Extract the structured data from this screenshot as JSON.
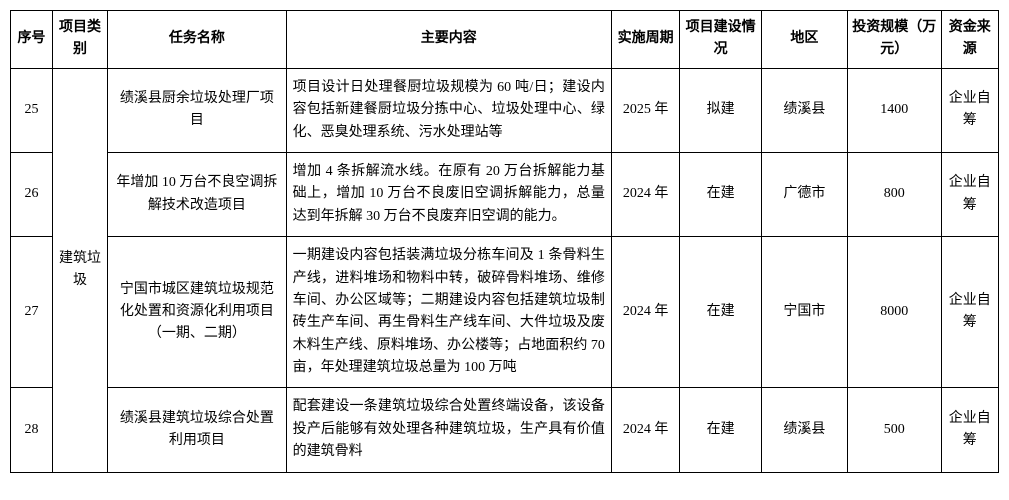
{
  "headers": {
    "seq": "序号",
    "category": "项目类别",
    "task": "任务名称",
    "content": "主要内容",
    "period": "实施周期",
    "status": "项目建设情况",
    "region": "地区",
    "invest": "投资规模（万元）",
    "fund": "资金来源"
  },
  "category_group": "建筑垃圾",
  "rows": [
    {
      "seq": "25",
      "task": "绩溪县厨余垃圾处理厂项目",
      "content": "项目设计日处理餐厨垃圾规模为 60 吨/日；建设内容包括新建餐厨垃圾分拣中心、垃圾处理中心、绿化、恶臭处理系统、污水处理站等",
      "period": "2025 年",
      "status": "拟建",
      "region": "绩溪县",
      "invest": "1400",
      "fund": "企业自筹"
    },
    {
      "seq": "26",
      "task": "年增加 10 万台不良空调拆解技术改造项目",
      "content": "增加 4 条拆解流水线。在原有 20 万台拆解能力基础上，增加 10 万台不良废旧空调拆解能力，总量达到年拆解 30 万台不良废弃旧空调的能力。",
      "period": "2024 年",
      "status": "在建",
      "region": "广德市",
      "invest": "800",
      "fund": "企业自筹"
    },
    {
      "seq": "27",
      "task": "宁国市城区建筑垃圾规范化处置和资源化利用项目（一期、二期）",
      "content": "一期建设内容包括装满垃圾分栋车间及 1 条骨料生产线，进料堆场和物料中转，破碎骨料堆场、维修车间、办公区域等；二期建设内容包括建筑垃圾制砖生产车间、再生骨料生产线车间、大件垃圾及废木料生产线、原料堆场、办公楼等；占地面积约 70 亩，年处理建筑垃圾总量为 100 万吨",
      "period": "2024 年",
      "status": "在建",
      "region": "宁国市",
      "invest": "8000",
      "fund": "企业自筹"
    },
    {
      "seq": "28",
      "task": "绩溪县建筑垃圾综合处置利用项目",
      "content": "配套建设一条建筑垃圾综合处置终端设备，该设备投产后能够有效处理各种建筑垃圾，生产具有价值的建筑骨料",
      "period": "2024 年",
      "status": "在建",
      "region": "绩溪县",
      "invest": "500",
      "fund": "企业自筹"
    }
  ]
}
